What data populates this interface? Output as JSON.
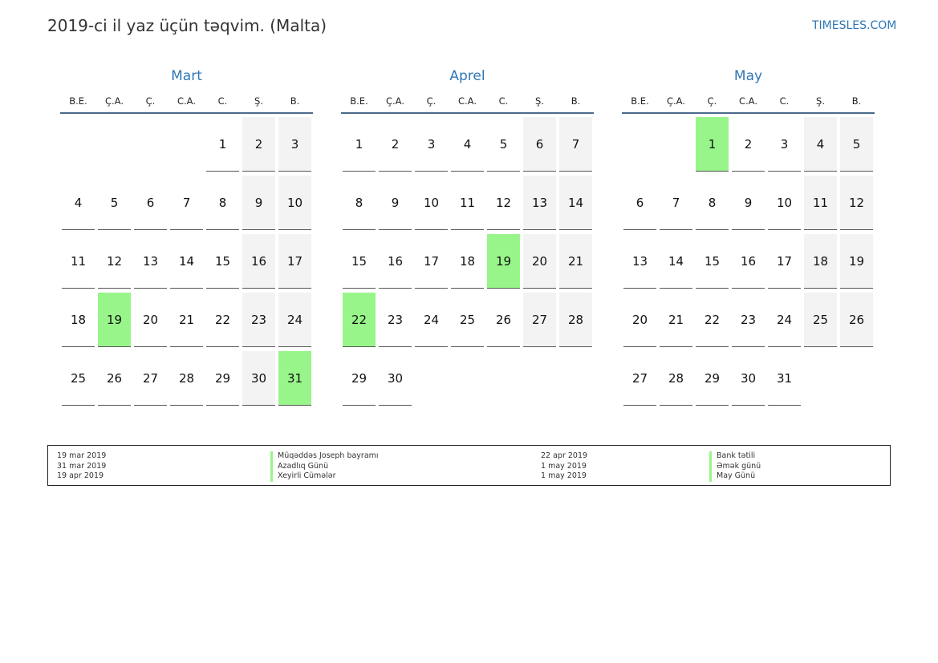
{
  "header": {
    "title": "2019-ci il yaz üçün təqvim. (Malta)",
    "site": "TIMESLES.COM"
  },
  "colors": {
    "accent": "#2f77b5",
    "holiday": "#98f58a",
    "weekend": "#f3f3f3"
  },
  "weekdays": [
    "B.E.",
    "Ç.A.",
    "Ç.",
    "C.A.",
    "C.",
    "Ş.",
    "B."
  ],
  "months": [
    {
      "name": "Mart",
      "weeks": [
        [
          "",
          "",
          "",
          "",
          "1",
          "2",
          "3"
        ],
        [
          "4",
          "5",
          "6",
          "7",
          "8",
          "9",
          "10"
        ],
        [
          "11",
          "12",
          "13",
          "14",
          "15",
          "16",
          "17"
        ],
        [
          "18",
          "19",
          "20",
          "21",
          "22",
          "23",
          "24"
        ],
        [
          "25",
          "26",
          "27",
          "28",
          "29",
          "30",
          "31"
        ]
      ],
      "holidays": [
        "19",
        "31"
      ]
    },
    {
      "name": "Aprel",
      "weeks": [
        [
          "1",
          "2",
          "3",
          "4",
          "5",
          "6",
          "7"
        ],
        [
          "8",
          "9",
          "10",
          "11",
          "12",
          "13",
          "14"
        ],
        [
          "15",
          "16",
          "17",
          "18",
          "19",
          "20",
          "21"
        ],
        [
          "22",
          "23",
          "24",
          "25",
          "26",
          "27",
          "28"
        ],
        [
          "29",
          "30",
          "",
          "",
          "",
          "",
          ""
        ]
      ],
      "holidays": [
        "19",
        "22"
      ]
    },
    {
      "name": "May",
      "weeks": [
        [
          "",
          "",
          "1",
          "2",
          "3",
          "4",
          "5"
        ],
        [
          "6",
          "7",
          "8",
          "9",
          "10",
          "11",
          "12"
        ],
        [
          "13",
          "14",
          "15",
          "16",
          "17",
          "18",
          "19"
        ],
        [
          "20",
          "21",
          "22",
          "23",
          "24",
          "25",
          "26"
        ],
        [
          "27",
          "28",
          "29",
          "30",
          "31",
          "",
          ""
        ]
      ],
      "holidays": [
        "1"
      ]
    }
  ],
  "legend": [
    {
      "date": "19 mar 2019",
      "name": "Müqəddəs Joseph bayramı"
    },
    {
      "date": "31 mar 2019",
      "name": "Azadlıq Günü"
    },
    {
      "date": "19 apr 2019",
      "name": "Xeyirli Cümələr"
    },
    {
      "date": "22 apr 2019",
      "name": "Bank tətili"
    },
    {
      "date": "1 may 2019",
      "name": "Əmək günü"
    },
    {
      "date": "1 may 2019",
      "name": "May Günü"
    }
  ]
}
